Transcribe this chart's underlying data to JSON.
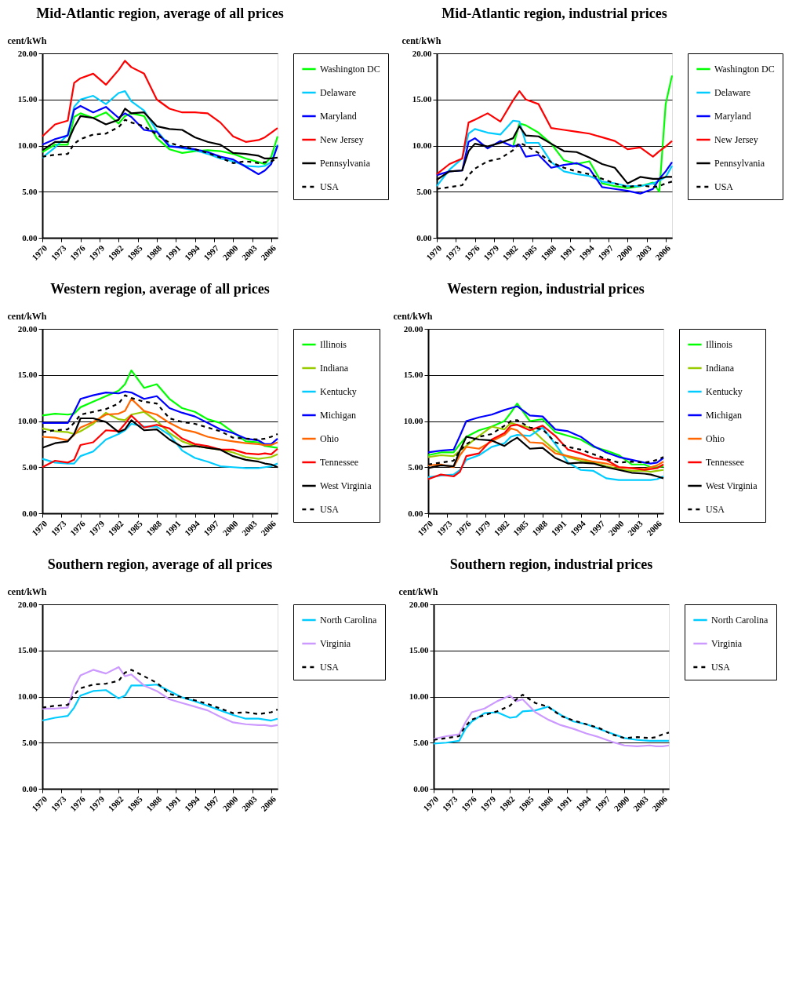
{
  "chart_data": [
    {
      "type": "line",
      "title": "Mid-Atlantic region, average of all prices",
      "ylabel": "cent/kWh",
      "grid": "y",
      "legend": "right",
      "x": [
        1970,
        1972,
        1974,
        1975,
        1976,
        1978,
        1980,
        1982,
        1983,
        1984,
        1986,
        1988,
        1990,
        1992,
        1994,
        1996,
        1998,
        2000,
        2002,
        2004,
        2005,
        2006,
        2007
      ],
      "xlim": [
        1970,
        2007
      ],
      "xticks": [
        1970,
        1973,
        1976,
        1979,
        1982,
        1985,
        1988,
        1991,
        1994,
        1997,
        2000,
        2003,
        2006
      ],
      "ylim": [
        0,
        20
      ],
      "yticks": [
        {
          "value": 0,
          "label": "0.00"
        },
        {
          "value": 5,
          "label": "5.00"
        },
        {
          "value": 10,
          "label": "10.00"
        },
        {
          "value": 15,
          "label": "15.00"
        },
        {
          "value": 20,
          "label": "20.00"
        }
      ],
      "series": [
        {
          "name": "Washington DC",
          "color": "#00ff00",
          "line_style": "solid",
          "values": [
            9.3,
            10.1,
            10.1,
            13.1,
            13.5,
            13.0,
            13.6,
            12.4,
            13.2,
            13.5,
            13.2,
            10.8,
            9.6,
            9.2,
            9.4,
            9.5,
            9.4,
            9.1,
            8.6,
            8.2,
            8.0,
            8.8,
            11.0
          ]
        },
        {
          "name": "Delaware",
          "color": "#00ccff",
          "line_style": "solid",
          "values": [
            8.7,
            9.8,
            11.2,
            14.2,
            15.0,
            15.4,
            14.5,
            15.7,
            15.9,
            14.8,
            13.8,
            11.6,
            10.0,
            9.7,
            9.5,
            9.1,
            8.6,
            8.3,
            7.8,
            7.7,
            7.8,
            8.2,
            10.1
          ]
        },
        {
          "name": "Maryland",
          "color": "#0000ff",
          "line_style": "solid",
          "values": [
            10.1,
            10.7,
            11.1,
            13.9,
            14.3,
            13.6,
            14.2,
            13.0,
            13.5,
            13.1,
            11.7,
            11.5,
            9.9,
            9.8,
            9.6,
            9.3,
            8.8,
            8.5,
            7.7,
            6.9,
            7.3,
            8.0,
            10.0
          ]
        },
        {
          "name": "New Jersey",
          "color": "#ff0000",
          "line_style": "solid",
          "values": [
            11.0,
            12.3,
            12.7,
            16.8,
            17.3,
            17.8,
            16.6,
            18.2,
            19.2,
            18.5,
            17.8,
            15.0,
            14.0,
            13.6,
            13.6,
            13.5,
            12.5,
            11.0,
            10.4,
            10.6,
            10.9,
            11.4,
            11.9
          ]
        },
        {
          "name": "Pennsylvania",
          "color": "#000000",
          "line_style": "solid",
          "values": [
            9.5,
            10.4,
            10.4,
            12.0,
            13.2,
            13.0,
            12.3,
            12.8,
            14.0,
            13.5,
            13.6,
            12.1,
            11.8,
            11.7,
            10.9,
            10.4,
            10.1,
            9.2,
            9.1,
            8.9,
            8.6,
            8.6,
            8.7
          ]
        },
        {
          "name": "USA",
          "color": "#000000",
          "line_style": "dashed",
          "values": [
            8.8,
            9.0,
            9.1,
            10.2,
            10.7,
            11.2,
            11.3,
            12.0,
            12.8,
            12.5,
            12.1,
            11.2,
            10.3,
            9.9,
            9.6,
            9.2,
            8.7,
            8.1,
            8.3,
            8.1,
            8.2,
            8.3,
            8.6
          ]
        }
      ]
    },
    {
      "type": "line",
      "title": "Mid-Atlantic region, industrial prices",
      "ylabel": "cent/kWh",
      "grid": "y",
      "legend": "right",
      "x": [
        1970,
        1972,
        1974,
        1975,
        1976,
        1978,
        1980,
        1982,
        1983,
        1984,
        1986,
        1988,
        1990,
        1992,
        1994,
        1996,
        1998,
        2000,
        2002,
        2004,
        2005,
        2006,
        2007
      ],
      "xlim": [
        1970,
        2007
      ],
      "xticks": [
        1970,
        1973,
        1976,
        1979,
        1982,
        1985,
        1988,
        1991,
        1994,
        1997,
        2000,
        2003,
        2006
      ],
      "ylim": [
        0,
        20
      ],
      "yticks": [
        {
          "value": 0,
          "label": "0.00"
        },
        {
          "value": 5,
          "label": "5.00"
        },
        {
          "value": 10,
          "label": "10.00"
        },
        {
          "value": 15,
          "label": "15.00"
        },
        {
          "value": 20,
          "label": "20.00"
        }
      ],
      "series": [
        {
          "name": "Washington DC",
          "color": "#00ff00",
          "line_style": "solid",
          "values": [
            null,
            null,
            null,
            null,
            null,
            null,
            null,
            9.9,
            12.4,
            12.2,
            11.4,
            10.2,
            8.4,
            8.0,
            8.3,
            5.9,
            5.6,
            5.4,
            5.6,
            6.0,
            5.0,
            14.5,
            17.6
          ]
        },
        {
          "name": "Delaware",
          "color": "#00ccff",
          "line_style": "solid",
          "values": [
            5.6,
            7.4,
            8.6,
            11.3,
            11.8,
            11.4,
            11.2,
            12.7,
            12.6,
            10.3,
            10.3,
            8.2,
            7.2,
            6.9,
            6.7,
            6.1,
            5.9,
            5.6,
            5.6,
            5.9,
            6.2,
            6.6,
            7.8
          ]
        },
        {
          "name": "Maryland",
          "color": "#0000ff",
          "line_style": "solid",
          "values": [
            6.8,
            7.2,
            7.3,
            10.4,
            10.8,
            9.7,
            10.5,
            9.9,
            10.1,
            8.8,
            9.0,
            7.6,
            7.9,
            8.1,
            7.5,
            5.5,
            5.3,
            5.1,
            4.8,
            5.3,
            6.4,
            7.2,
            8.2
          ]
        },
        {
          "name": "New Jersey",
          "color": "#ff0000",
          "line_style": "solid",
          "values": [
            6.9,
            8.0,
            8.6,
            12.5,
            12.8,
            13.5,
            12.6,
            14.9,
            15.9,
            15.0,
            14.5,
            11.9,
            11.7,
            11.5,
            11.3,
            10.9,
            10.5,
            9.6,
            9.8,
            8.8,
            9.4,
            9.9,
            10.5
          ]
        },
        {
          "name": "Pennsylvania",
          "color": "#000000",
          "line_style": "solid",
          "values": [
            6.3,
            7.2,
            7.3,
            9.4,
            10.2,
            9.9,
            10.3,
            10.8,
            12.1,
            11.1,
            11.0,
            10.2,
            9.4,
            9.3,
            8.7,
            8.0,
            7.6,
            5.9,
            6.6,
            6.4,
            6.4,
            6.6,
            6.6
          ]
        },
        {
          "name": "USA",
          "color": "#000000",
          "line_style": "dashed",
          "values": [
            5.3,
            5.5,
            5.7,
            6.8,
            7.5,
            8.3,
            8.6,
            9.5,
            10.3,
            10.0,
            9.2,
            8.2,
            7.6,
            7.2,
            6.9,
            6.4,
            5.9,
            5.5,
            5.7,
            5.5,
            5.6,
            5.9,
            6.1
          ]
        }
      ]
    },
    {
      "type": "line",
      "title": "Western region, average of all prices",
      "ylabel": "cent/kWh",
      "grid": "y",
      "legend": "right",
      "x": [
        1970,
        1972,
        1974,
        1975,
        1976,
        1978,
        1980,
        1982,
        1983,
        1984,
        1986,
        1988,
        1990,
        1992,
        1994,
        1996,
        1998,
        2000,
        2002,
        2004,
        2005,
        2006,
        2007
      ],
      "xlim": [
        1970,
        2007
      ],
      "xticks": [
        1970,
        1973,
        1976,
        1979,
        1982,
        1985,
        1988,
        1991,
        1994,
        1997,
        2000,
        2003,
        2006
      ],
      "ylim": [
        0,
        20
      ],
      "yticks": [
        {
          "value": 0,
          "label": "0.00"
        },
        {
          "value": 5,
          "label": "5.00"
        },
        {
          "value": 10,
          "label": "10.00"
        },
        {
          "value": 15,
          "label": "15.00"
        },
        {
          "value": 20,
          "label": "20.00"
        }
      ],
      "series": [
        {
          "name": "Illinois",
          "color": "#00ff00",
          "line_style": "solid",
          "values": [
            10.6,
            10.8,
            10.7,
            10.8,
            11.5,
            12.1,
            12.7,
            13.3,
            14.0,
            15.5,
            13.6,
            14.0,
            12.4,
            11.4,
            11.0,
            10.2,
            9.8,
            8.8,
            7.8,
            7.7,
            7.3,
            7.2,
            7.1
          ]
        },
        {
          "name": "Indiana",
          "color": "#99cc00",
          "line_style": "solid",
          "values": [
            9.2,
            8.9,
            8.8,
            8.6,
            8.9,
            9.7,
            10.9,
            10.2,
            10.1,
            10.7,
            11.0,
            10.0,
            8.7,
            7.8,
            7.3,
            7.1,
            6.9,
            6.6,
            6.1,
            5.9,
            6.0,
            6.1,
            6.4
          ]
        },
        {
          "name": "Kentucky",
          "color": "#00ccff",
          "line_style": "solid",
          "values": [
            5.9,
            5.5,
            5.4,
            5.4,
            6.2,
            6.7,
            8.0,
            8.6,
            9.0,
            9.7,
            9.4,
            9.4,
            8.5,
            6.8,
            6.0,
            5.6,
            5.1,
            5.0,
            4.9,
            4.9,
            5.0,
            5.1,
            5.4
          ]
        },
        {
          "name": "Michigan",
          "color": "#0000ff",
          "line_style": "solid",
          "values": [
            9.8,
            9.8,
            9.8,
            11.0,
            12.4,
            12.8,
            13.1,
            13.0,
            13.2,
            13.1,
            12.4,
            12.7,
            11.4,
            10.9,
            10.5,
            9.8,
            9.1,
            8.7,
            8.1,
            7.9,
            7.5,
            7.5,
            8.1
          ]
        },
        {
          "name": "Ohio",
          "color": "#ff6600",
          "line_style": "solid",
          "values": [
            8.3,
            8.2,
            7.9,
            8.5,
            9.3,
            9.9,
            10.7,
            10.8,
            11.1,
            12.4,
            11.1,
            10.7,
            9.8,
            9.1,
            8.8,
            8.3,
            8.0,
            7.8,
            7.6,
            7.5,
            7.4,
            7.4,
            7.7
          ]
        },
        {
          "name": "Tennessee",
          "color": "#ff0000",
          "line_style": "solid",
          "values": [
            5.0,
            5.7,
            5.5,
            5.8,
            7.4,
            7.7,
            9.0,
            8.9,
            9.7,
            10.6,
            9.3,
            9.6,
            9.2,
            8.1,
            7.5,
            7.3,
            6.9,
            6.9,
            6.5,
            6.4,
            6.5,
            6.4,
            7.0
          ]
        },
        {
          "name": "West Virginia",
          "color": "#000000",
          "line_style": "solid",
          "values": [
            7.1,
            7.6,
            7.8,
            8.6,
            10.3,
            10.3,
            9.9,
            8.8,
            9.1,
            10.1,
            9.0,
            9.1,
            8.0,
            7.2,
            7.3,
            7.1,
            6.9,
            6.2,
            5.8,
            5.6,
            5.4,
            5.3,
            5.0
          ]
        },
        {
          "name": "USA",
          "color": "#000000",
          "line_style": "dashed",
          "values": [
            8.8,
            9.0,
            9.1,
            9.8,
            10.7,
            11.0,
            11.3,
            11.9,
            12.8,
            12.5,
            12.1,
            11.9,
            10.3,
            9.9,
            9.7,
            9.3,
            8.9,
            8.2,
            8.1,
            8.0,
            8.1,
            8.3,
            8.6
          ]
        }
      ]
    },
    {
      "type": "line",
      "title": "Western region, industrial prices",
      "ylabel": "cent/kWh",
      "grid": "y",
      "legend": "right",
      "x": [
        1970,
        1972,
        1974,
        1975,
        1976,
        1978,
        1980,
        1982,
        1983,
        1984,
        1986,
        1988,
        1990,
        1992,
        1994,
        1996,
        1998,
        2000,
        2002,
        2004,
        2005,
        2006,
        2007
      ],
      "xlim": [
        1970,
        2007
      ],
      "xticks": [
        1970,
        1973,
        1976,
        1979,
        1982,
        1985,
        1988,
        1991,
        1994,
        1997,
        2000,
        2003,
        2006
      ],
      "ylim": [
        0,
        20
      ],
      "yticks": [
        {
          "value": 0,
          "label": "0.00"
        },
        {
          "value": 5,
          "label": "5.00"
        },
        {
          "value": 10,
          "label": "10.00"
        },
        {
          "value": 15,
          "label": "15.00"
        },
        {
          "value": 20,
          "label": "20.00"
        }
      ],
      "series": [
        {
          "name": "Illinois",
          "color": "#00ff00",
          "line_style": "solid",
          "values": [
            6.3,
            6.6,
            6.6,
            7.5,
            8.3,
            9.0,
            9.4,
            10.0,
            10.9,
            11.9,
            10.0,
            10.2,
            8.8,
            8.4,
            8.0,
            7.2,
            6.8,
            6.3,
            5.3,
            5.3,
            5.0,
            5.0,
            5.1
          ]
        },
        {
          "name": "Indiana",
          "color": "#99cc00",
          "line_style": "solid",
          "values": [
            6.1,
            6.3,
            6.2,
            6.8,
            7.3,
            8.4,
            9.4,
            9.1,
            9.8,
            9.6,
            9.3,
            8.0,
            6.8,
            6.1,
            5.7,
            5.5,
            5.1,
            4.8,
            4.6,
            4.6,
            4.5,
            4.6,
            4.7
          ]
        },
        {
          "name": "Kentucky",
          "color": "#00ccff",
          "line_style": "solid",
          "values": [
            3.9,
            4.1,
            4.2,
            4.7,
            5.8,
            6.3,
            7.2,
            7.6,
            8.3,
            8.5,
            8.4,
            9.3,
            7.5,
            5.5,
            4.7,
            4.6,
            3.8,
            3.6,
            3.6,
            3.6,
            3.6,
            3.7,
            4.0
          ]
        },
        {
          "name": "Michigan",
          "color": "#0000ff",
          "line_style": "solid",
          "values": [
            6.6,
            6.8,
            6.9,
            8.4,
            10.0,
            10.4,
            10.7,
            11.2,
            11.4,
            11.6,
            10.6,
            10.5,
            9.1,
            8.9,
            8.3,
            7.3,
            6.6,
            6.1,
            5.8,
            5.5,
            5.4,
            5.5,
            6.0
          ]
        },
        {
          "name": "Ohio",
          "color": "#ff6600",
          "line_style": "solid",
          "values": [
            5.2,
            5.3,
            5.0,
            6.3,
            7.2,
            7.0,
            7.8,
            8.5,
            9.2,
            9.0,
            7.7,
            7.6,
            6.5,
            6.2,
            5.9,
            5.6,
            5.4,
            5.0,
            4.9,
            4.8,
            5.0,
            5.2,
            5.6
          ]
        },
        {
          "name": "Tennessee",
          "color": "#ff0000",
          "line_style": "solid",
          "values": [
            3.7,
            4.2,
            4.0,
            4.5,
            6.2,
            6.5,
            8.0,
            8.7,
            9.5,
            9.6,
            9.0,
            9.5,
            8.4,
            6.9,
            6.5,
            6.0,
            5.8,
            5.0,
            4.9,
            4.7,
            4.8,
            4.9,
            5.3
          ]
        },
        {
          "name": "West Virginia",
          "color": "#000000",
          "line_style": "solid",
          "values": [
            4.9,
            5.2,
            5.1,
            6.8,
            8.3,
            8.0,
            7.9,
            7.3,
            7.8,
            8.2,
            7.0,
            7.1,
            6.0,
            5.4,
            5.5,
            5.4,
            5.0,
            4.7,
            4.4,
            4.3,
            4.2,
            4.0,
            3.8
          ]
        },
        {
          "name": "USA",
          "color": "#000000",
          "line_style": "dashed",
          "values": [
            5.3,
            5.5,
            5.7,
            6.8,
            7.5,
            8.3,
            8.6,
            9.5,
            10.0,
            10.1,
            9.3,
            9.1,
            7.7,
            7.2,
            6.9,
            6.4,
            5.9,
            5.5,
            5.6,
            5.5,
            5.6,
            5.8,
            6.1
          ]
        }
      ]
    },
    {
      "type": "line",
      "title": "Southern region, average of all prices",
      "ylabel": "cent/kWh",
      "grid": "y",
      "legend": "right",
      "x": [
        1970,
        1972,
        1974,
        1975,
        1976,
        1978,
        1980,
        1982,
        1983,
        1984,
        1986,
        1988,
        1990,
        1992,
        1994,
        1996,
        1998,
        2000,
        2002,
        2004,
        2005,
        2006,
        2007
      ],
      "xlim": [
        1970,
        2007
      ],
      "xticks": [
        1970,
        1973,
        1976,
        1979,
        1982,
        1985,
        1988,
        1991,
        1994,
        1997,
        2000,
        2003,
        2006
      ],
      "ylim": [
        0,
        20
      ],
      "yticks": [
        {
          "value": 0,
          "label": "0.00"
        },
        {
          "value": 5,
          "label": "5.00"
        },
        {
          "value": 10,
          "label": "10.00"
        },
        {
          "value": 15,
          "label": "15.00"
        },
        {
          "value": 20,
          "label": "20.00"
        }
      ],
      "series": [
        {
          "name": "North Carolina",
          "color": "#00ccff",
          "line_style": "solid",
          "values": [
            7.4,
            7.7,
            7.9,
            8.8,
            10.1,
            10.6,
            10.7,
            9.8,
            10.1,
            11.2,
            11.2,
            11.3,
            10.6,
            9.9,
            9.5,
            9.0,
            8.5,
            8.0,
            7.6,
            7.6,
            7.5,
            7.4,
            7.6
          ]
        },
        {
          "name": "Virginia",
          "color": "#cc99ff",
          "line_style": "solid",
          "values": [
            8.7,
            8.7,
            8.8,
            11.0,
            12.3,
            12.9,
            12.5,
            13.2,
            12.2,
            12.4,
            11.2,
            10.6,
            9.7,
            9.3,
            8.9,
            8.5,
            7.8,
            7.2,
            7.0,
            6.9,
            6.9,
            6.8,
            6.9
          ]
        },
        {
          "name": "USA",
          "color": "#000000",
          "line_style": "dashed",
          "values": [
            8.8,
            9.0,
            9.1,
            10.2,
            10.9,
            11.3,
            11.4,
            11.7,
            12.6,
            12.9,
            12.2,
            11.5,
            10.3,
            9.9,
            9.6,
            9.2,
            8.7,
            8.2,
            8.3,
            8.1,
            8.2,
            8.3,
            8.6
          ]
        }
      ]
    },
    {
      "type": "line",
      "title": "Southern region, industrial prices",
      "ylabel": "cent/kWh",
      "grid": "y",
      "legend": "right",
      "x": [
        1970,
        1972,
        1974,
        1975,
        1976,
        1978,
        1980,
        1982,
        1983,
        1984,
        1986,
        1988,
        1990,
        1992,
        1994,
        1996,
        1998,
        2000,
        2002,
        2004,
        2005,
        2006,
        2007
      ],
      "xlim": [
        1970,
        2007
      ],
      "xticks": [
        1970,
        1973,
        1976,
        1979,
        1982,
        1985,
        1988,
        1991,
        1994,
        1997,
        2000,
        2003,
        2006
      ],
      "ylim": [
        0,
        20
      ],
      "yticks": [
        {
          "value": 0,
          "label": "0.00"
        },
        {
          "value": 5,
          "label": "5.00"
        },
        {
          "value": 10,
          "label": "10.00"
        },
        {
          "value": 15,
          "label": "15.00"
        },
        {
          "value": 20,
          "label": "20.00"
        }
      ],
      "series": [
        {
          "name": "North Carolina",
          "color": "#00ccff",
          "line_style": "solid",
          "values": [
            4.9,
            5.0,
            5.2,
            6.5,
            7.3,
            8.2,
            8.3,
            7.7,
            7.8,
            8.4,
            8.5,
            8.9,
            8.0,
            7.3,
            7.0,
            6.5,
            6.0,
            5.5,
            5.3,
            5.2,
            5.2,
            5.2,
            5.2
          ]
        },
        {
          "name": "Virginia",
          "color": "#cc99ff",
          "line_style": "solid",
          "values": [
            5.4,
            5.7,
            5.9,
            7.2,
            8.3,
            8.7,
            9.5,
            10.1,
            9.5,
            9.7,
            8.3,
            7.5,
            6.9,
            6.5,
            6.0,
            5.6,
            5.1,
            4.7,
            4.6,
            4.7,
            4.6,
            4.6,
            4.7
          ]
        },
        {
          "name": "USA",
          "color": "#000000",
          "line_style": "dashed",
          "values": [
            5.3,
            5.5,
            5.7,
            6.8,
            7.5,
            8.0,
            8.4,
            9.0,
            9.7,
            10.2,
            9.3,
            8.9,
            7.9,
            7.4,
            7.0,
            6.6,
            5.9,
            5.5,
            5.6,
            5.5,
            5.6,
            5.9,
            6.1
          ]
        }
      ]
    }
  ]
}
